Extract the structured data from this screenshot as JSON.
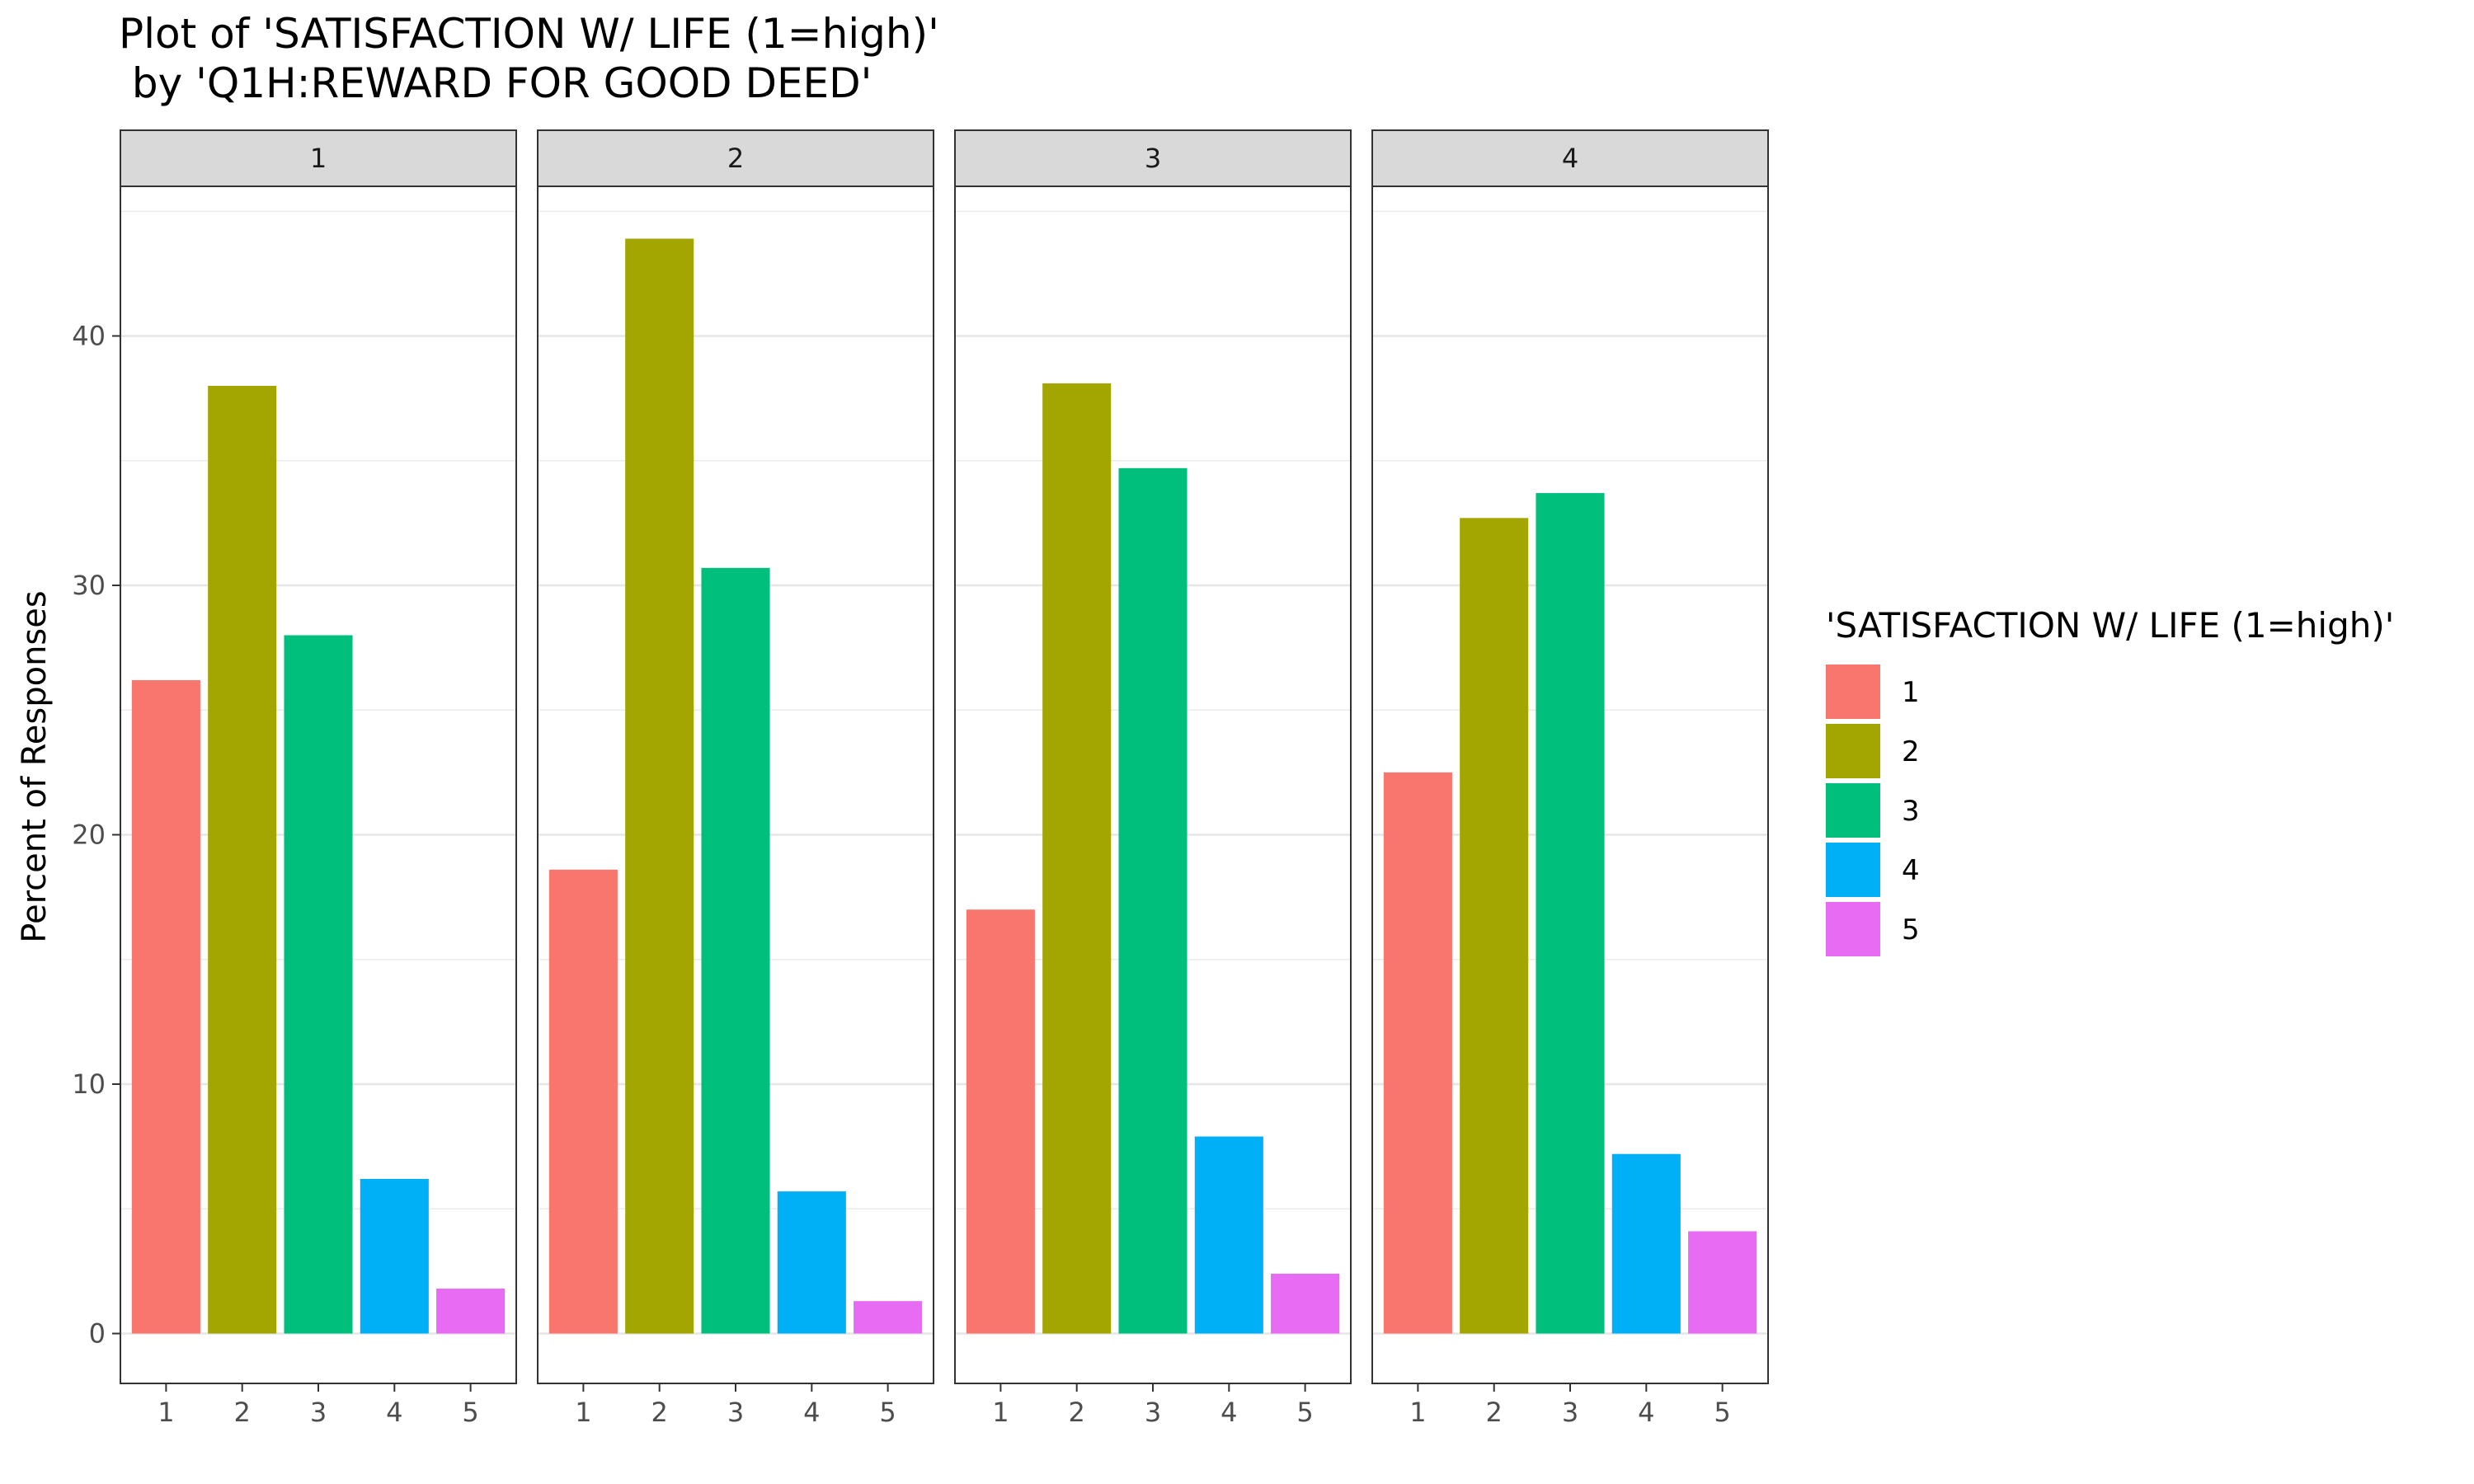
{
  "chart_data": {
    "type": "bar",
    "title": "Plot of 'SATISFACTION W/ LIFE (1=high)'",
    "subtitle": " by 'Q1H:REWARD FOR GOOD DEED'",
    "xlabel": "",
    "ylabel": "Percent of Responses",
    "ylim": [
      -2,
      46
    ],
    "yticks": [
      0,
      10,
      20,
      30,
      40
    ],
    "grid": true,
    "legend": {
      "title": "'SATISFACTION W/ LIFE (1=high)'",
      "placement": "right",
      "entries": [
        "1",
        "2",
        "3",
        "4",
        "5"
      ]
    },
    "colors": [
      "#F8766D",
      "#A3A500",
      "#00BF7D",
      "#00B0F6",
      "#E76BF3"
    ],
    "categories": [
      "1",
      "2",
      "3",
      "4",
      "5"
    ],
    "facets": [
      {
        "label": "1",
        "values": [
          26.2,
          38.0,
          28.0,
          6.2,
          1.8
        ]
      },
      {
        "label": "2",
        "values": [
          18.6,
          43.9,
          30.7,
          5.7,
          1.3
        ]
      },
      {
        "label": "3",
        "values": [
          17.0,
          38.1,
          34.7,
          7.9,
          2.4
        ]
      },
      {
        "label": "4",
        "values": [
          22.5,
          32.7,
          33.7,
          7.2,
          4.1
        ]
      }
    ]
  }
}
